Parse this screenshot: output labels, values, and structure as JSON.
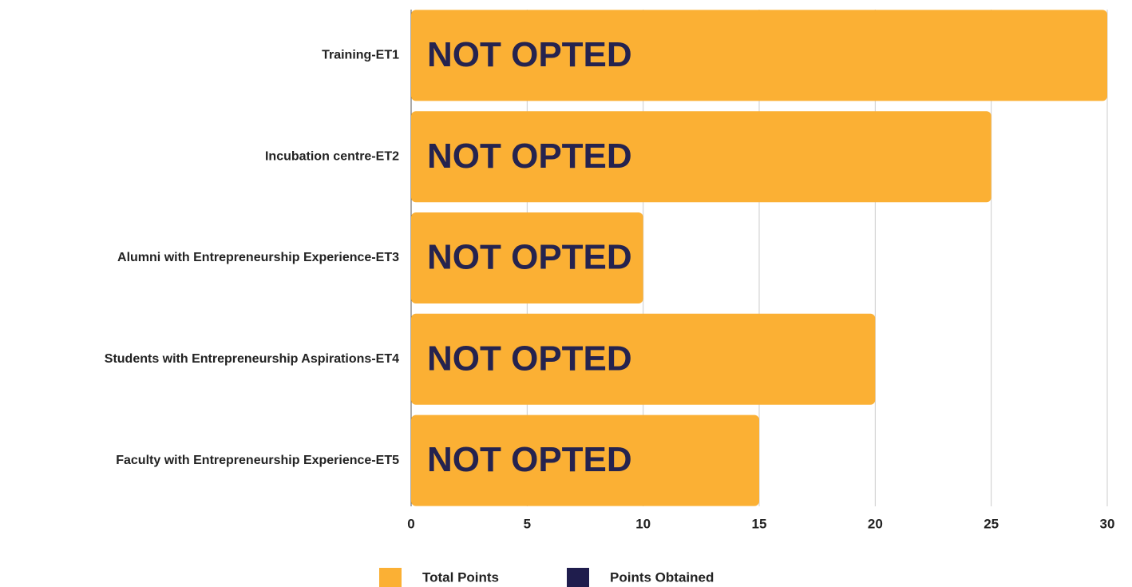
{
  "chart_data": {
    "type": "bar",
    "orientation": "horizontal",
    "categories": [
      "Training-ET1",
      "Incubation centre-ET2",
      "Alumni with Entrepreneurship Experience-ET3",
      "Students with Entrepreneurship Aspirations-ET4",
      "Faculty with Entrepreneurship Experience-ET5"
    ],
    "series": [
      {
        "name": "Total Points",
        "color": "#fbb034",
        "values": [
          30,
          25,
          10,
          20,
          15
        ]
      },
      {
        "name": "Points Obtained",
        "color": "#1f1d4d",
        "values": [
          0,
          0,
          0,
          0,
          0
        ]
      }
    ],
    "annotations": [
      "NOT OPTED",
      "NOT OPTED",
      "NOT OPTED",
      "NOT OPTED",
      "NOT OPTED"
    ],
    "xlim": [
      0,
      30
    ],
    "xticks": [
      0,
      5,
      10,
      15,
      20,
      25,
      30
    ],
    "grid": true,
    "legend": "bottom"
  }
}
